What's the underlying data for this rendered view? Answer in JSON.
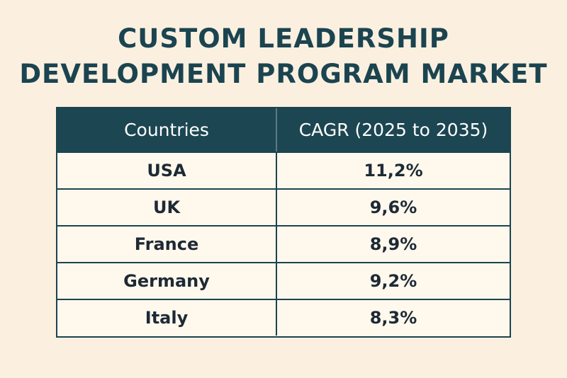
{
  "title_lines": [
    "CUSTOM LEADERSHIP",
    "DEVELOPMENT PROGRAM MARKET"
  ],
  "chart_data": {
    "type": "table",
    "title": "CUSTOM LEADERSHIP DEVELOPMENT PROGRAM MARKET",
    "columns": [
      "Countries",
      "CAGR (2025 to 2035)"
    ],
    "rows": [
      [
        "USA",
        "11,2%"
      ],
      [
        "UK",
        "9,6%"
      ],
      [
        "France",
        "8,9%"
      ],
      [
        "Germany",
        "9,2%"
      ],
      [
        "Italy",
        "8,3%"
      ]
    ]
  },
  "colors": {
    "background": "#fbf0e0",
    "header": "#1c4652",
    "title": "#1b4450"
  }
}
